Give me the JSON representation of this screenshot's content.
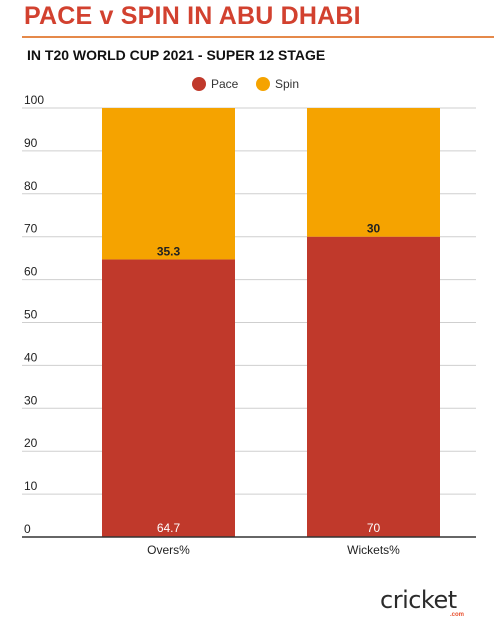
{
  "title": "PACE v SPIN IN ABU DHABI",
  "subtitle": "IN T20 WORLD CUP 2021 - SUPER 12 STAGE",
  "logo": {
    "word": "cricket",
    "sub": ".com"
  },
  "colors": {
    "pace": "#c0392b",
    "spin": "#f5a300",
    "title": "#d2412f",
    "grid": "#cfcfcf"
  },
  "chart_data": {
    "type": "bar",
    "stacked": true,
    "categories": [
      "Overs%",
      "Wickets%"
    ],
    "series": [
      {
        "name": "Pace",
        "values": [
          64.7,
          70
        ]
      },
      {
        "name": "Spin",
        "values": [
          35.3,
          30
        ]
      }
    ],
    "data_labels": {
      "Pace": [
        "64.7",
        "70"
      ],
      "Spin": [
        "35.3",
        "30"
      ]
    },
    "ylim": [
      0,
      100
    ],
    "yticks": [
      0,
      10,
      20,
      30,
      40,
      50,
      60,
      70,
      80,
      90,
      100
    ],
    "grid": true,
    "legend": "top-center",
    "xlabel": "",
    "ylabel": ""
  }
}
